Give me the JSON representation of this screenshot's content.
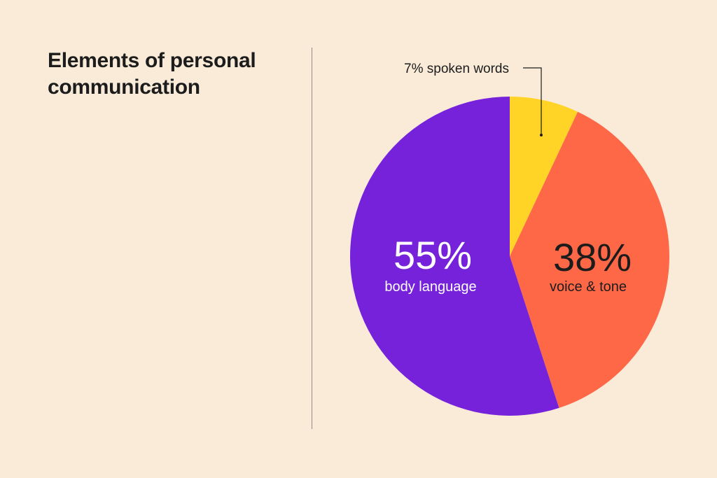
{
  "title_lines": [
    "Elements of personal",
    "communication"
  ],
  "colors": {
    "background": "#FAEBD9",
    "spoken_words": "#FFD426",
    "voice_tone": "#FF6847",
    "body_language": "#7522DA"
  },
  "chart_data": {
    "type": "pie",
    "title": "Elements of personal communication",
    "slices": [
      {
        "label": "spoken words",
        "value": 7,
        "value_label": "7%",
        "color": "#FFD426",
        "label_color": "#1c1c1c"
      },
      {
        "label": "voice & tone",
        "value": 38,
        "value_label": "38%",
        "color": "#FF6847",
        "label_color": "#1c1c1c"
      },
      {
        "label": "body language",
        "value": 55,
        "value_label": "55%",
        "color": "#7522DA",
        "label_color": "#ffffff"
      }
    ],
    "start_angle": "12 o'clock",
    "direction": "clockwise",
    "callout": "7% spoken words"
  }
}
